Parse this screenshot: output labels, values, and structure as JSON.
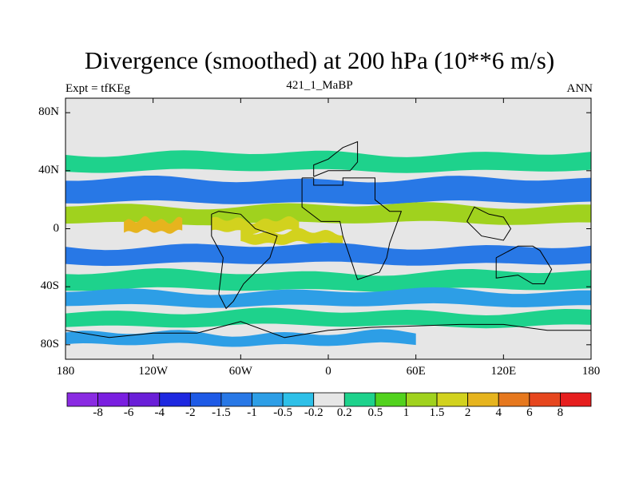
{
  "header": {
    "title": "Divergence (smoothed) at 200 hPa (10**6 m/s)",
    "left_label": "Expt = tfKEg",
    "center_label": "421_1_MaBP",
    "right_label": "ANN"
  },
  "colors": {
    "background_field": "#e6e6e6",
    "land_outline": "#000000",
    "colorbar": [
      "#8a2be2",
      "#7a1fe0",
      "#6a1fd8",
      "#1e28e0",
      "#1e5ae6",
      "#2878e6",
      "#2d9ee6",
      "#2ec0e8",
      "#e6e6e6",
      "#1ed28c",
      "#52d21e",
      "#a0d21e",
      "#d2d21e",
      "#e6b41e",
      "#e6781e",
      "#e6461e",
      "#e61e1e"
    ]
  },
  "chart_data": {
    "type": "heatmap",
    "title": "Divergence (smoothed) at 200 hPa (10**6 m/s)",
    "left_label": "Expt = tfKEg",
    "center_label": "421_1_MaBP",
    "right_label": "ANN",
    "x_ticks": [
      "180",
      "120W",
      "60W",
      "0",
      "60E",
      "120E",
      "180"
    ],
    "y_ticks": [
      "80N",
      "40N",
      "0",
      "40S",
      "80S"
    ],
    "colorbar_levels": [
      "-8",
      "-6",
      "-4",
      "-2",
      "-1.5",
      "-1",
      "-0.5",
      "-0.2",
      "0.2",
      "0.5",
      "1",
      "1.5",
      "2",
      "4",
      "6",
      "8"
    ],
    "xlim": [
      -180,
      180
    ],
    "ylim": [
      -90,
      90
    ],
    "bands": [
      {
        "lat": 46,
        "width": 6,
        "level": 9,
        "lon_range": [
          -180,
          180
        ]
      },
      {
        "lat": 26,
        "width": 8,
        "level": 5,
        "lon_range": [
          -180,
          180
        ]
      },
      {
        "lat": 10,
        "width": 6,
        "level": 11,
        "lon_range": [
          -180,
          180
        ]
      },
      {
        "lat": 2,
        "width": 4,
        "level": 13,
        "lon_range": [
          -140,
          -100
        ]
      },
      {
        "lat": 2,
        "width": 4,
        "level": 12,
        "lon_range": [
          -80,
          -20
        ]
      },
      {
        "lat": -6,
        "width": 4,
        "level": 12,
        "lon_range": [
          -60,
          10
        ]
      },
      {
        "lat": -18,
        "width": 6,
        "level": 5,
        "lon_range": [
          -180,
          180
        ]
      },
      {
        "lat": -36,
        "width": 6,
        "level": 9,
        "lon_range": [
          -180,
          180
        ]
      },
      {
        "lat": -48,
        "width": 5,
        "level": 6,
        "lon_range": [
          -180,
          180
        ]
      },
      {
        "lat": -62,
        "width": 5,
        "level": 9,
        "lon_range": [
          -180,
          180
        ]
      },
      {
        "lat": -76,
        "width": 4,
        "level": 6,
        "lon_range": [
          -180,
          60
        ]
      }
    ]
  }
}
